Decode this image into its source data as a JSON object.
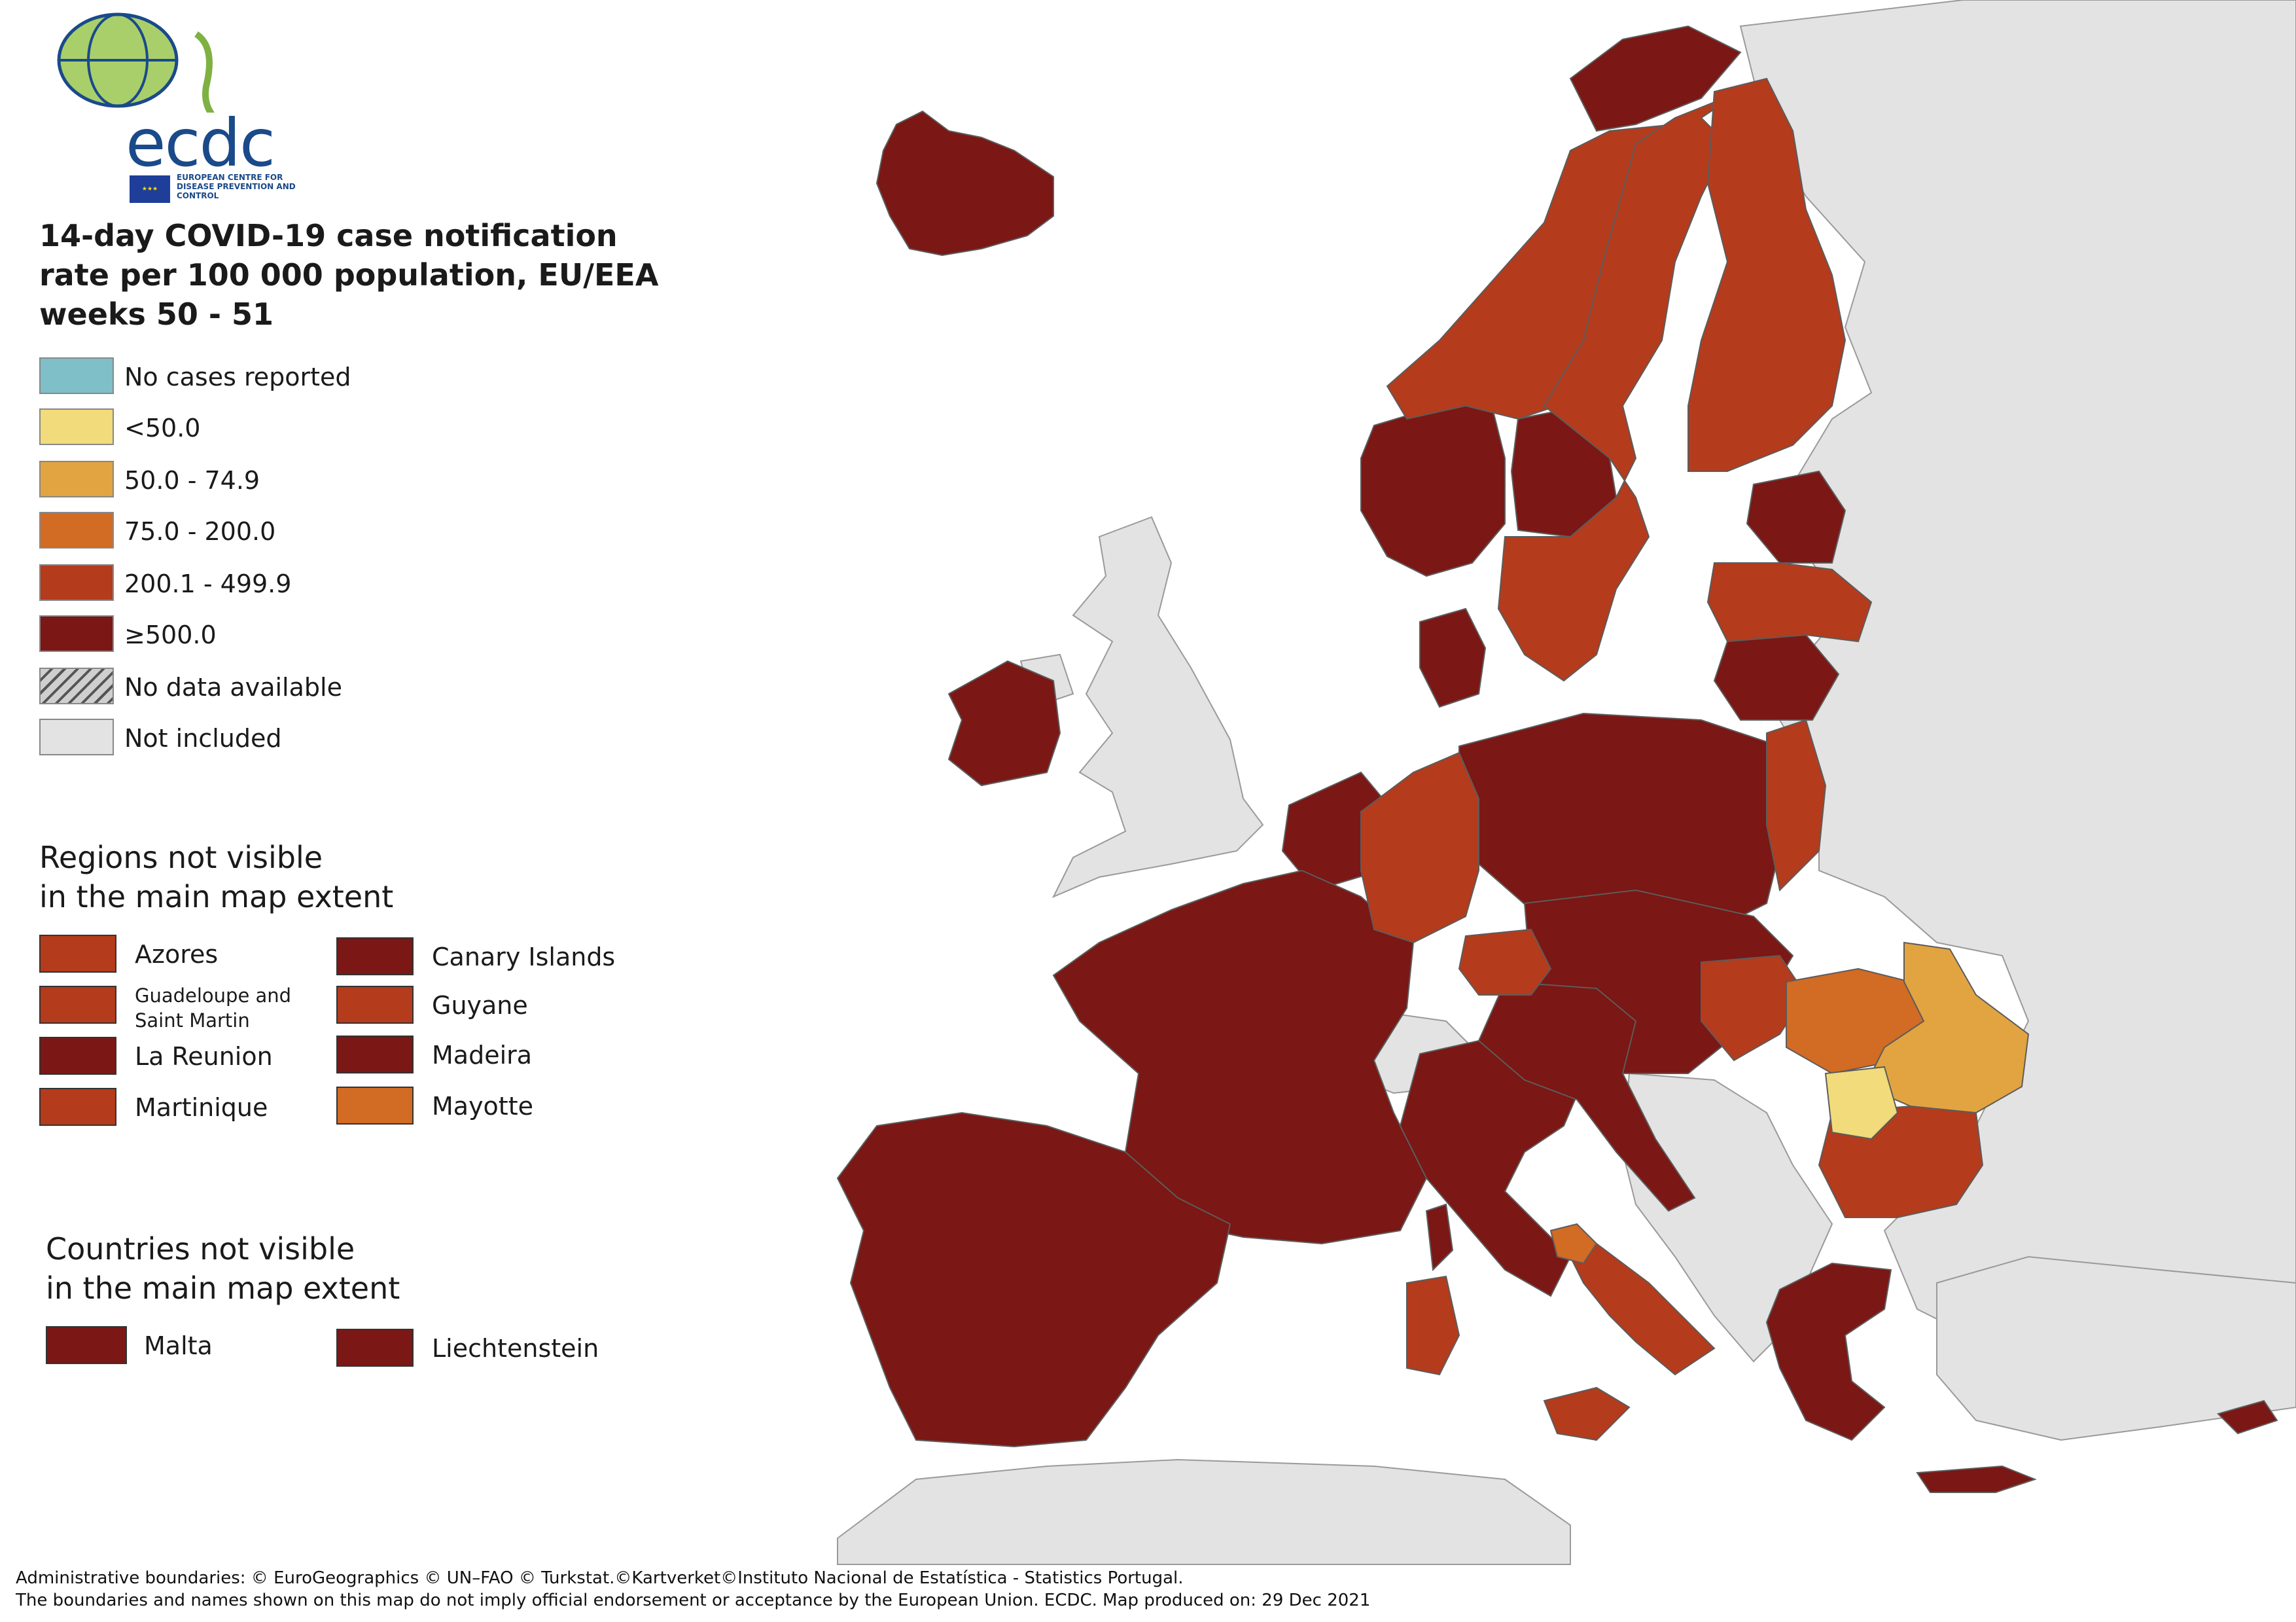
{
  "logo": {
    "wordmark": "ecdc",
    "subtitle": "EUROPEAN CENTRE FOR DISEASE PREVENTION AND CONTROL"
  },
  "title": {
    "line1": "14-day COVID-19 case notification",
    "line2": "rate per 100 000 population, EU/EEA",
    "line3": "weeks 50 - 51"
  },
  "colors": {
    "no_cases": "#7fbfc7",
    "lt50": "#f1db7b",
    "r50_75": "#e2a440",
    "r75_200": "#d26b24",
    "r200_500": "#b43b1c",
    "ge500": "#7b1714",
    "not_included": "#e3e3e3",
    "sea": "#ffffff",
    "border": "#5c5c5c"
  },
  "legend": [
    {
      "label": "No cases reported",
      "color": "#7fbfc7"
    },
    {
      "label": "<50.0",
      "color": "#f1db7b"
    },
    {
      "label": "50.0 - 74.9",
      "color": "#e2a440"
    },
    {
      "label": "75.0 - 200.0",
      "color": "#d26b24"
    },
    {
      "label": "200.1 - 499.9",
      "color": "#b43b1c"
    },
    {
      "label": "≥500.0",
      "color": "#7b1714"
    },
    {
      "label": "No data available",
      "color": "hatched"
    },
    {
      "label": "Not included",
      "color": "#e3e3e3"
    }
  ],
  "regions_section": {
    "line1": "Regions not visible",
    "line2": "in the main map extent",
    "items": [
      {
        "label": "Azores",
        "color": "#b43b1c"
      },
      {
        "label": "Canary Islands",
        "color": "#7b1714"
      },
      {
        "label": "Guadeloupe and Saint Martin",
        "color": "#b43b1c"
      },
      {
        "label": "Guyane",
        "color": "#b43b1c"
      },
      {
        "label": "La Reunion",
        "color": "#7b1714"
      },
      {
        "label": "Madeira",
        "color": "#7b1714"
      },
      {
        "label": "Martinique",
        "color": "#b43b1c"
      },
      {
        "label": "Mayotte",
        "color": "#d26b24"
      }
    ]
  },
  "countries_section": {
    "line1": "Countries not visible",
    "line2": "in the main map extent",
    "items": [
      {
        "label": "Malta",
        "color": "#7b1714"
      },
      {
        "label": "Liechtenstein",
        "color": "#7b1714"
      }
    ]
  },
  "footer": {
    "line1": "Administrative boundaries: © EuroGeographics © UN–FAO © Turkstat.©Kartverket©Instituto Nacional de Estatística - Statistics Portugal.",
    "line2": "The boundaries and names shown on this map do not imply official endorsement or acceptance by the European Union. ECDC. Map produced on: 29 Dec 2021"
  }
}
